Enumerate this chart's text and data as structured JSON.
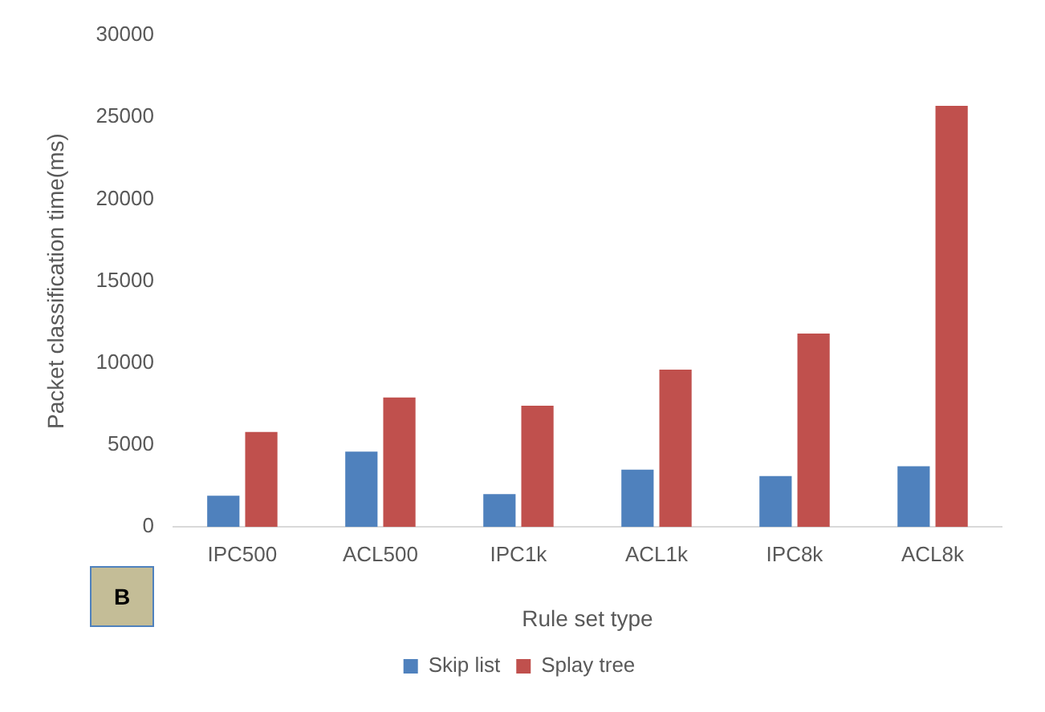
{
  "chart_data": {
    "type": "bar",
    "xlabel": "Rule set type",
    "ylabel": "Packet classification time(ms)",
    "categories": [
      "IPC500",
      "ACL500",
      "IPC1k",
      "ACL1k",
      "IPC8k",
      "ACL8k"
    ],
    "series": [
      {
        "name": "Skip list",
        "color": "#4f81bd",
        "values": [
          1900,
          4600,
          2000,
          3500,
          3100,
          3700
        ]
      },
      {
        "name": "Splay tree",
        "color": "#c0504d",
        "values": [
          5800,
          7900,
          7400,
          9600,
          11800,
          25700
        ]
      }
    ],
    "ylim": [
      0,
      30000
    ],
    "yticks": [
      0,
      5000,
      10000,
      15000,
      20000,
      25000,
      30000
    ],
    "grid": false,
    "legend": "bottom",
    "annotations": [
      "B"
    ]
  }
}
